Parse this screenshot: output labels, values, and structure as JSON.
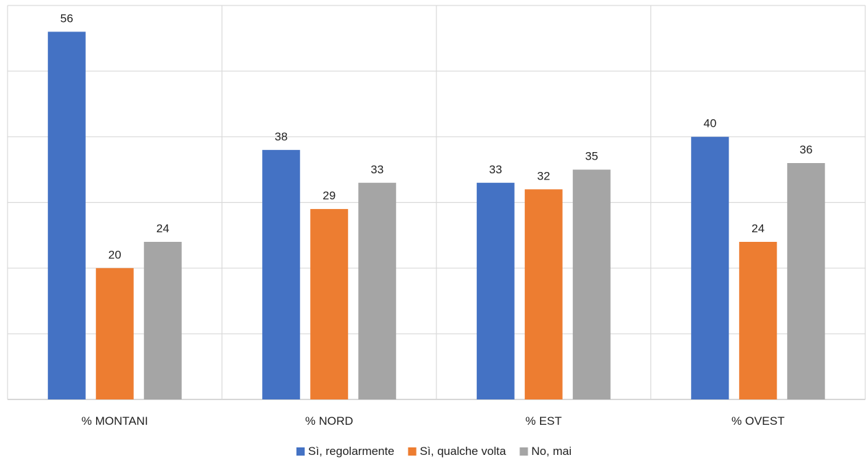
{
  "chart_data": {
    "type": "bar",
    "title": "",
    "xlabel": "",
    "ylabel": "",
    "categories": [
      "% MONTANI",
      "% NORD",
      "% EST",
      "% OVEST"
    ],
    "series": [
      {
        "name": "Sì, regolarmente",
        "color": "#4472c4",
        "values": [
          56,
          38,
          33,
          40
        ]
      },
      {
        "name": "Sì, qualche volta",
        "color": "#ed7d31",
        "values": [
          20,
          29,
          32,
          24
        ]
      },
      {
        "name": "No, mai",
        "color": "#a5a5a5",
        "values": [
          24,
          33,
          35,
          36
        ]
      }
    ],
    "ylim": [
      0,
      60
    ],
    "y_gridline_step": 10,
    "y_tick_labels_shown": false,
    "vertical_gridlines_between_categories": true,
    "data_labels": true,
    "legend_position": "bottom"
  }
}
